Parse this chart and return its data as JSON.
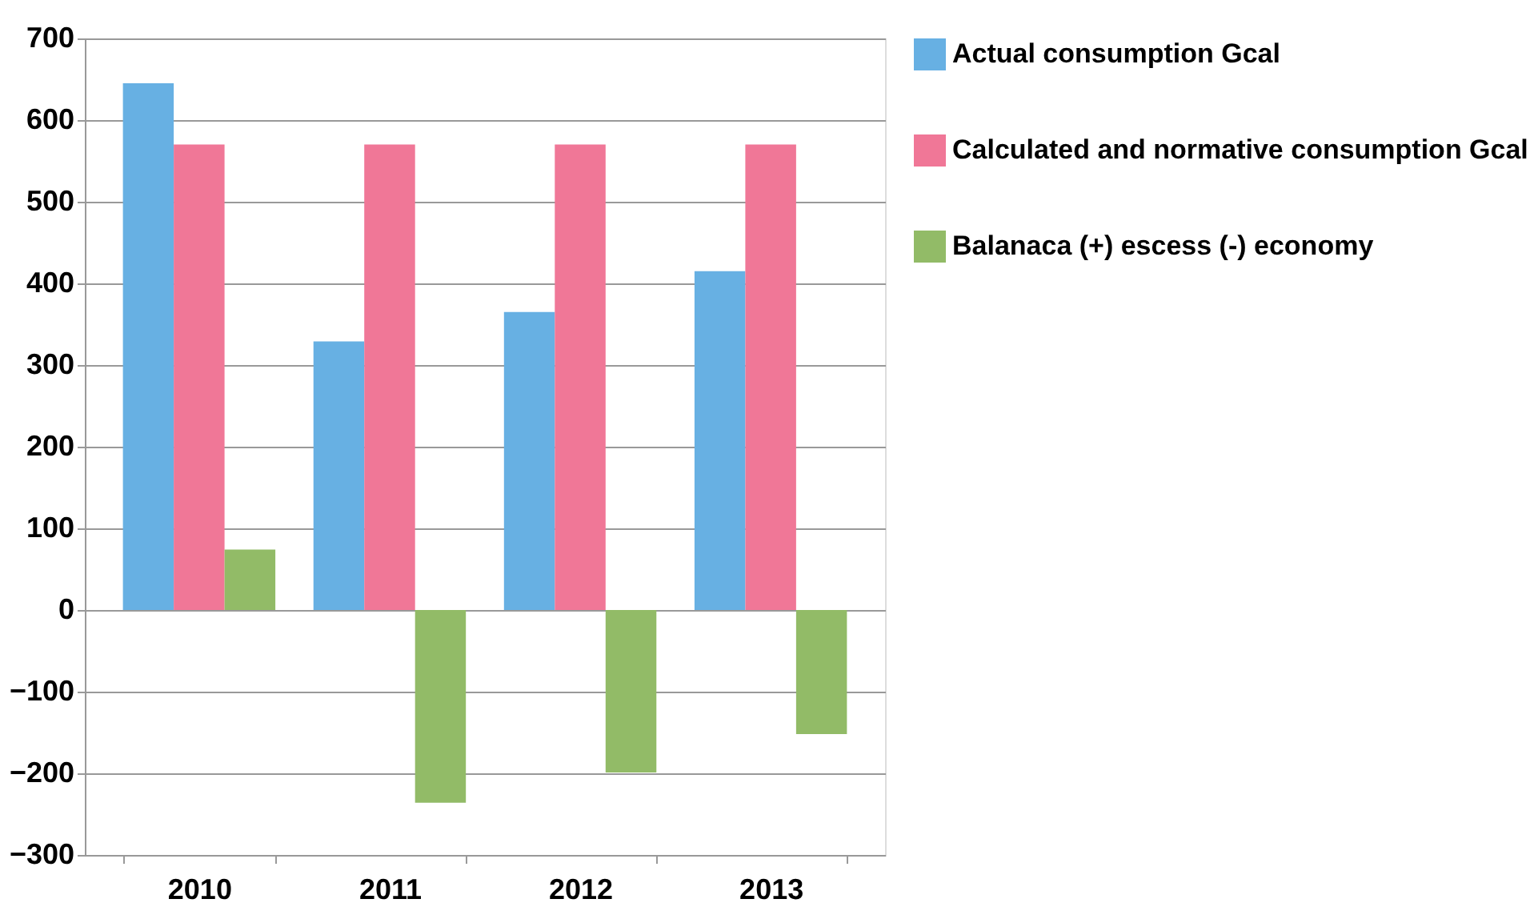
{
  "chart_data": {
    "type": "bar",
    "categories": [
      "2010",
      "2011",
      "2012",
      "2013"
    ],
    "series": [
      {
        "name": "Actual consumption Gcal",
        "color": "#67b0e3",
        "values": [
          645,
          329,
          365,
          415
        ]
      },
      {
        "name": "Calculated and normative consumption Gcal",
        "color": "#f07797",
        "values": [
          570,
          570,
          570,
          570
        ]
      },
      {
        "name": "Balanaca (+) escess (-) economy",
        "color": "#92bb67",
        "values": [
          74,
          -236,
          -199,
          -152
        ]
      }
    ],
    "ylim": [
      -300,
      700
    ],
    "yticks": [
      -300,
      -200,
      -100,
      0,
      100,
      200,
      300,
      400,
      500,
      600,
      700
    ],
    "grid": "y",
    "legend": "right"
  }
}
